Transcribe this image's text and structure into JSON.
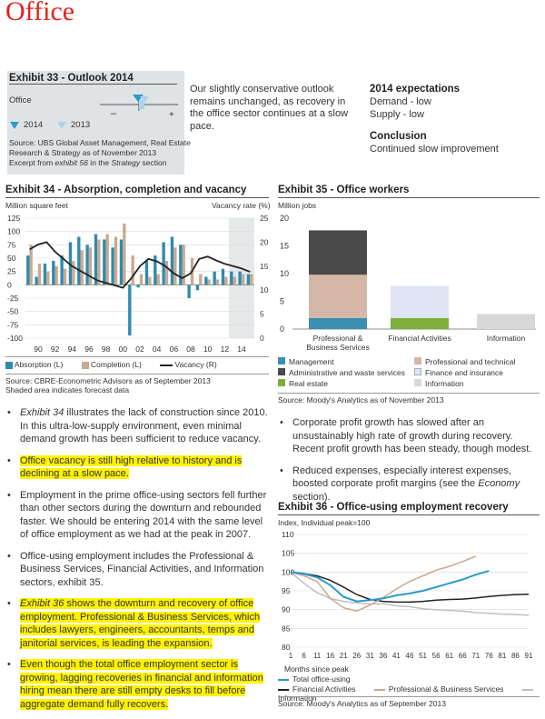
{
  "title": "Office",
  "ex33": {
    "title": "Exhibit 33 - Outlook 2014",
    "label": "Office",
    "minus": "–",
    "plus": "+",
    "legend_2014": "2014",
    "legend_2013": "2013",
    "source1": "Source: UBS Global Asset Management, Real Estate",
    "source2": "Research & Strategy as of November 2013",
    "source3_pre": "Excerpt from ",
    "source3_em": "exhibit 56",
    "source3_mid": " in the ",
    "source3_em2": "Strategy",
    "source3_post": " section",
    "middle": "Our slightly conservative outlook remains unchanged, as recovery in the office sector continues at a slow pace.",
    "exp_title": "2014 expectations",
    "exp1": "Demand - low",
    "exp2": "Supply - low",
    "conc_title": "Conclusion",
    "conc1": "Continued slow improvement",
    "colors": {
      "y2014": "#2b9ac9",
      "y2013": "#a9d4ea"
    }
  },
  "ex34": {
    "title": "Exhibit 34 - Absorption, completion and vacancy",
    "left_unit": "Million square feet",
    "right_unit": "Vacancy rate (%)",
    "legend": [
      "Absorption (L)",
      "Completion (L)",
      "Vacancy (R)"
    ],
    "source": "Source: CBRE-Econometric Advisors as of September 2013",
    "note": "Shaded area indicates forecast data"
  },
  "ex35": {
    "title": "Exhibit 35 - Office workers",
    "unit": "Million jobs",
    "legend": [
      "Management",
      "Professional and technical",
      "Administrative and waste services",
      "Finance and insurance",
      "Real estate",
      "Information"
    ],
    "source": "Source: Moody's Analytics as of November 2013"
  },
  "ex36": {
    "title": "Exhibit 36 - Office-using employment recovery",
    "unit": "Index, Individual peak=100",
    "xlabel": "Months since peak",
    "legend": [
      "Total office-using",
      "Financial Activities",
      "Professional & Business Services",
      "Information"
    ],
    "source": "Source: Moody's Analytics as of September 2013"
  },
  "left_bullets": [
    {
      "em": "Exhibit 34",
      "text": " illustrates the lack of construction since 2010. In this ultra-low-supply environment, even minimal demand growth has been sufficient to reduce vacancy."
    },
    {
      "em": "",
      "text": "Office vacancy is still high relative to history and is declining at a slow pace."
    },
    {
      "em": "",
      "text": "Employment in the prime office-using sectors fell further than other sectors during the downturn and rebounded faster. We should be entering 2014 with the same level of office employment as we had at the peak in 2007."
    },
    {
      "em": "",
      "text": "Office-using employment includes the Professional & Business Services, Financial Activities, and Information sectors, exhibit 35."
    },
    {
      "em": "Exhibit 36",
      "text": " shows the downturn and recovery of office employment. Professional & Business Services, which includes lawyers, engineers, accountants, temps and janitorial services, is leading the expansion."
    },
    {
      "em": "",
      "text": "Even though the total office employment sector is growing, lagging recoveries in financial and information hiring mean there are still empty desks to fill before aggregate demand fully recovers."
    }
  ],
  "right_bullets": [
    {
      "text": "Corporate profit growth has slowed after an unsustainably high rate of growth during recovery. Recent profit growth has been steady, though modest."
    },
    {
      "pre": "Reduced expenses, especially interest expenses, boosted corporate profit margins (see the ",
      "em": "Economy",
      "post": " section)."
    }
  ],
  "chart_data": [
    {
      "type": "bar",
      "title": "Exhibit 34 - Absorption, completion and vacancy",
      "x": [
        "89",
        "90",
        "91",
        "92",
        "93",
        "94",
        "95",
        "96",
        "97",
        "98",
        "99",
        "00",
        "01",
        "02",
        "03",
        "04",
        "05",
        "06",
        "07",
        "08",
        "09",
        "10",
        "11",
        "12",
        "13",
        "14",
        "15"
      ],
      "x_tick_labels": [
        "90",
        "92",
        "94",
        "96",
        "98",
        "00",
        "02",
        "04",
        "06",
        "08",
        "10",
        "12",
        "14"
      ],
      "series": [
        {
          "name": "Absorption (L)",
          "axis": "left",
          "values": [
            55,
            15,
            40,
            45,
            55,
            80,
            90,
            75,
            95,
            85,
            70,
            85,
            -95,
            -5,
            45,
            55,
            80,
            90,
            75,
            -25,
            -10,
            15,
            25,
            30,
            25,
            25,
            20
          ]
        },
        {
          "name": "Completion (L)",
          "axis": "left",
          "values": [
            75,
            40,
            25,
            35,
            30,
            45,
            65,
            70,
            85,
            95,
            90,
            115,
            55,
            20,
            15,
            20,
            45,
            70,
            75,
            50,
            20,
            10,
            10,
            15,
            15,
            20,
            20
          ]
        },
        {
          "name": "Vacancy (R)",
          "axis": "right",
          "values": [
            18.5,
            19.5,
            20,
            18,
            16.5,
            15,
            14,
            13,
            12,
            11.5,
            11,
            10.5,
            12.5,
            15,
            16.5,
            16,
            15,
            13.5,
            12.5,
            13.5,
            16.5,
            17,
            16.2,
            15.5,
            15,
            14.5,
            13.8
          ]
        }
      ],
      "left_ylim": [
        -100,
        125
      ],
      "left_ticks": [
        125,
        100,
        75,
        50,
        25,
        0,
        -25,
        -50,
        -75,
        -100
      ],
      "right_ylim": [
        0,
        25
      ],
      "right_ticks": [
        25,
        20,
        15,
        10,
        5,
        0
      ],
      "forecast_from": "13",
      "colors": {
        "absorption": "#2f8ab0",
        "completion": "#c9a990",
        "vacancy": "#222222",
        "shade": "#e6e9ea"
      }
    },
    {
      "type": "bar",
      "stacked": true,
      "title": "Exhibit 35 - Office workers",
      "categories": [
        "Professional & Business Services",
        "Financial Activities",
        "Information"
      ],
      "series": [
        {
          "name": "Management",
          "values": [
            2.0,
            0,
            0
          ]
        },
        {
          "name": "Real estate",
          "values": [
            0,
            2.0,
            0
          ]
        },
        {
          "name": "Professional and technical",
          "values": [
            7.8,
            0,
            0
          ]
        },
        {
          "name": "Finance and insurance",
          "values": [
            0,
            5.8,
            0
          ]
        },
        {
          "name": "Administrative and waste services",
          "values": [
            8.0,
            0,
            0
          ]
        },
        {
          "name": "Information",
          "values": [
            0,
            0,
            2.7
          ]
        }
      ],
      "ylim": [
        0,
        20
      ],
      "ticks": [
        0,
        5,
        10,
        15,
        20
      ],
      "colors": {
        "Management": "#3a8fb0",
        "Professional and technical": "#d4b7a6",
        "Administrative and waste services": "#4a4a4a",
        "Finance and insurance": "#dfe4f2",
        "Real estate": "#7fae3c",
        "Information": "#d8d8d8"
      }
    },
    {
      "type": "line",
      "title": "Exhibit 36 - Office-using employment recovery",
      "xlabel": "Months since peak",
      "ylabel": "Index, Individual peak=100",
      "x_ticks": [
        1,
        6,
        11,
        16,
        21,
        26,
        31,
        36,
        41,
        46,
        51,
        56,
        61,
        66,
        71,
        76,
        81,
        86,
        91
      ],
      "ylim": [
        80,
        110
      ],
      "y_ticks": [
        110,
        105,
        100,
        95,
        90,
        85,
        80
      ],
      "series": [
        {
          "name": "Total office-using",
          "x": [
            1,
            6,
            11,
            16,
            21,
            26,
            31,
            36,
            41,
            46,
            51,
            56,
            61,
            66,
            71,
            76
          ],
          "y": [
            100,
            99.5,
            98.6,
            96.5,
            93.4,
            92.2,
            92.5,
            93,
            93.8,
            94.3,
            95,
            96,
            97,
            98,
            99.3,
            100.3
          ]
        },
        {
          "name": "Financial Activities",
          "x": [
            1,
            6,
            11,
            16,
            21,
            26,
            31,
            36,
            41,
            46,
            51,
            56,
            61,
            66,
            71,
            76,
            81,
            86,
            91
          ],
          "y": [
            100,
            99.6,
            99,
            97.8,
            96,
            94,
            92.7,
            92.2,
            92,
            92,
            92.2,
            92.5,
            92.7,
            92.8,
            93.1,
            93.5,
            93.8,
            94,
            94.1
          ]
        },
        {
          "name": "Professional & Business Services",
          "x": [
            1,
            6,
            11,
            16,
            21,
            26,
            31,
            36,
            41,
            46,
            51,
            56,
            61,
            66,
            71
          ],
          "y": [
            100,
            99,
            97.5,
            93,
            90.5,
            89.6,
            91.2,
            93.2,
            95.5,
            97.5,
            99,
            100.5,
            101.5,
            102.8,
            104.2
          ]
        },
        {
          "name": "Information",
          "x": [
            1,
            6,
            11,
            16,
            21,
            26,
            31,
            36,
            41,
            46,
            51,
            56,
            61,
            66,
            71,
            76,
            81,
            86,
            91
          ],
          "y": [
            100,
            97,
            94.5,
            93,
            92.2,
            91.8,
            91.5,
            91.6,
            91,
            90.8,
            90.2,
            90,
            89.8,
            89.6,
            89.2,
            89,
            88.8,
            88.7,
            88.5
          ]
        }
      ],
      "colors": {
        "Total office-using": "#2b9ac9",
        "Financial Activities": "#222222",
        "Professional & Business Services": "#c9a88f",
        "Information": "#bfbfbf"
      }
    }
  ]
}
